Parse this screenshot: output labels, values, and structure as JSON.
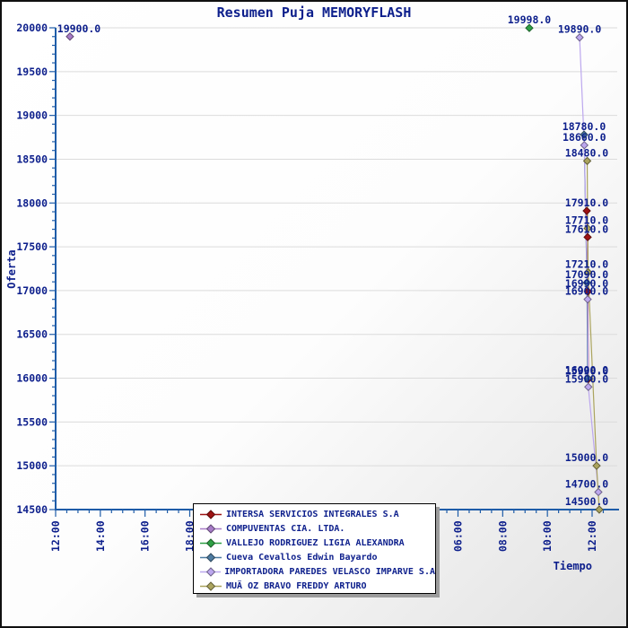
{
  "title": "Resumen Puja MEMORYFLASH",
  "chart_data": {
    "type": "line",
    "title": "Resumen Puja MEMORYFLASH",
    "xlabel": "Tiempo",
    "ylabel": "Oferta",
    "x_axis": {
      "tick_labels": [
        "12:00",
        "14:00",
        "16:00",
        "18:00",
        "20:00",
        "22:00",
        "00:00",
        "02:00",
        "04:00",
        "06:00",
        "08:00",
        "10:00",
        "12:00"
      ],
      "tick_interval_hours": 2,
      "minor_tick_hours": 0.5,
      "span_hours": 24
    },
    "y_axis": {
      "min": 14500,
      "max": 20000,
      "tick_step": 500,
      "minor_step": 100
    },
    "grid": "horizontal-only",
    "legend_position": "bottom-center",
    "point_label_format": "one-decimal",
    "series": [
      {
        "name": "INTERSA SERVICIOS INTEGRALES S.A",
        "color": "#9E1313",
        "points": [
          {
            "t": 23.76,
            "v": 17910.0
          },
          {
            "t": 23.8,
            "v": 17610.0
          },
          {
            "t": 23.81,
            "v": 16990.0
          },
          {
            "t": 23.83,
            "v": 15990.0
          }
        ]
      },
      {
        "name": "COMPUVENTAS CIA. LTDA.",
        "color": "#A87CC8",
        "points": [
          {
            "t": 0.64,
            "v": 19900.0
          }
        ]
      },
      {
        "name": "VALLEJO RODRIGUEZ LIGIA ALEXANDRA",
        "color": "#2FA045",
        "points": [
          {
            "t": 21.19,
            "v": 19998.0
          }
        ]
      },
      {
        "name": "Cueva Cevallos Edwin Bayardo",
        "color": "#4E7CA1",
        "points": [
          {
            "t": 23.64,
            "v": 18780.0
          },
          {
            "t": 23.77,
            "v": 17090.0
          },
          {
            "t": 23.8,
            "v": 16000.0
          }
        ]
      },
      {
        "name": "IMPORTADORA PAREDES VELASCO IMPARVE S.A",
        "color": "#BCA7EE",
        "points": [
          {
            "t": 23.44,
            "v": 19890.0
          },
          {
            "t": 23.65,
            "v": 18660.0
          },
          {
            "t": 23.8,
            "v": 16900.0
          },
          {
            "t": 23.83,
            "v": 15900.0
          },
          {
            "t": 24.28,
            "v": 14700.0
          }
        ]
      },
      {
        "name": "MUÃ OZ BRAVO FREDDY ARTURO",
        "color": "#ABA45E",
        "points": [
          {
            "t": 23.78,
            "v": 18480.0
          },
          {
            "t": 23.8,
            "v": 17710.0
          },
          {
            "t": 23.82,
            "v": 17210.0
          },
          {
            "t": 24.2,
            "v": 15000.0
          },
          {
            "t": 24.32,
            "v": 14500.0
          }
        ]
      }
    ]
  },
  "colors": {
    "text": "#0D1F8C",
    "axis": "#1E5CA8",
    "grid": "#DBDBDB",
    "background_from": "#FFFFFF",
    "background_to": "#E2E2E2",
    "legend_bg": "#FFFFFF",
    "legend_border": "#000000",
    "legend_shadow": "#9C9C9C"
  }
}
